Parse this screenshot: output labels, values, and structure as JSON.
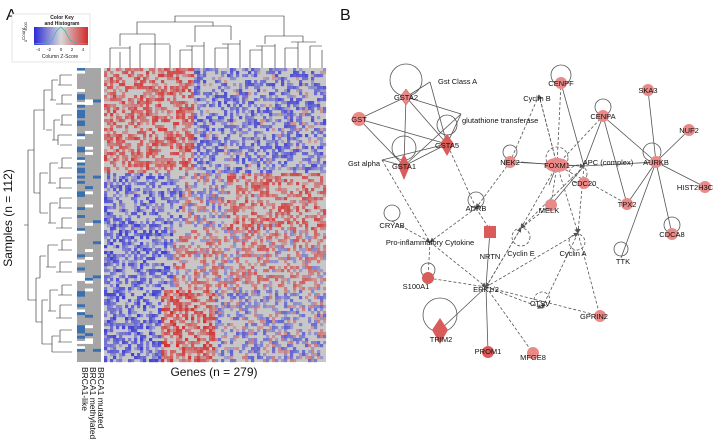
{
  "panel_a": {
    "label": "A",
    "color_key": {
      "title_line1": "Color Key",
      "title_line2": "and Histogram",
      "y_axis_label": "Count",
      "y_ticks": [
        "0",
        "4000"
      ],
      "x_ticks": [
        "-4",
        "-2",
        "0",
        "2",
        "4"
      ],
      "x_axis_label": "Column Z-Score",
      "colors": {
        "low": "#2b2bd6",
        "mid": "#c8c8c8",
        "high": "#d42a2a"
      }
    },
    "y_axis_label": "Samples (n = 112)",
    "x_axis_label": "Genes (n = 279)",
    "annotation_labels": [
      "BRCA1-like",
      "BRCA1 methylated",
      "BRCA1 mutated"
    ],
    "annotation_colors": {
      "present": "#3a6fb0",
      "absent": "#ffffff",
      "background": "#a6a6a6"
    }
  },
  "panel_b": {
    "label": "B",
    "colors": {
      "upregulated": "#e98a88",
      "strong": "#d95c5a",
      "neutral": "#ffffff",
      "edge": "#555555"
    },
    "nodes": {
      "gst_class_a": "Gst Class A",
      "gsta2": "GSTA2",
      "gst": "GST",
      "glutathione_transferase": "glutathione transferase",
      "gsta5": "GSTA5",
      "gst_alpha": "Gst alpha",
      "gsta1": "GSTA1",
      "cenpf": "CENPF",
      "cyclin_b": "Cyclin B",
      "cenpa": "CENPA",
      "ska3": "SKA3",
      "nuf2": "NUF2",
      "nek2": "NEK2",
      "foxm1": "FOXM1",
      "apc_complex": "APC (complex)",
      "aurkb": "AURKB",
      "adrb": "ADRB",
      "melk": "MELK",
      "cdc20": "CDC20",
      "tpx2": "TPX2",
      "hist2h3c": "HIST2H3C",
      "cryab": "CRYAB",
      "cdca8": "CDCA8",
      "proinflammatory_cytokine": "Pro-inflammatory Cytokine",
      "nrtn": "NRTN",
      "cyclin_e": "Cyclin E",
      "cyclin_a": "Cyclin A",
      "ttk": "TTK",
      "s100a1": "S100A1",
      "erk12": "ERK1/2",
      "ctsv": "CTSV",
      "gprin2": "GPRIN2",
      "trim2": "TRIM2",
      "prom1": "PROM1",
      "mfge8": "MFGE8"
    }
  }
}
